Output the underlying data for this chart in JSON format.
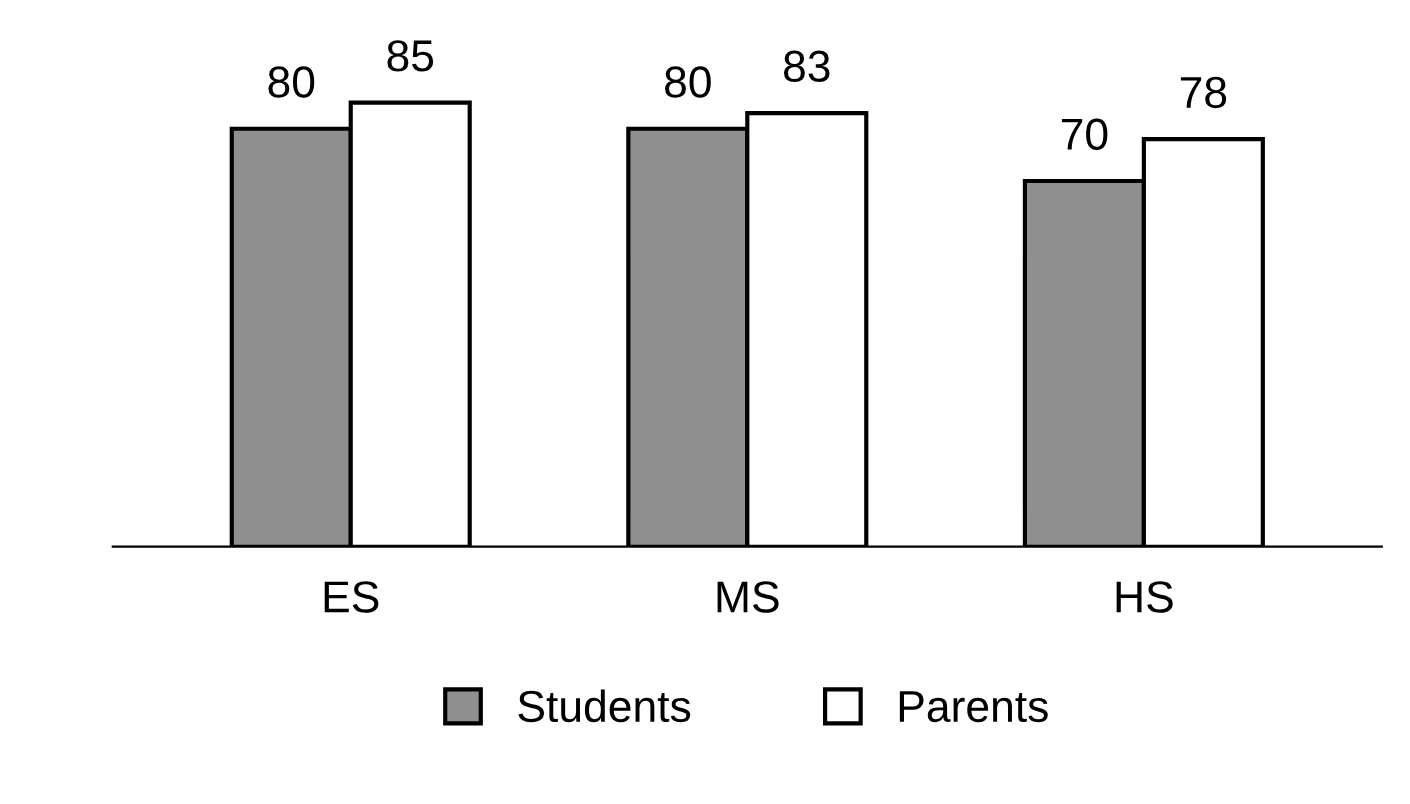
{
  "chart_data": {
    "type": "bar",
    "categories": [
      "ES",
      "MS",
      "HS"
    ],
    "series": [
      {
        "name": "Students",
        "color": "#8f8f8f",
        "values": [
          80,
          80,
          70
        ]
      },
      {
        "name": "Parents",
        "color": "#ffffff",
        "values": [
          85,
          83,
          78
        ]
      }
    ],
    "data_labels": true,
    "legend": "bottom",
    "grid": false,
    "tick_labels": "x"
  }
}
